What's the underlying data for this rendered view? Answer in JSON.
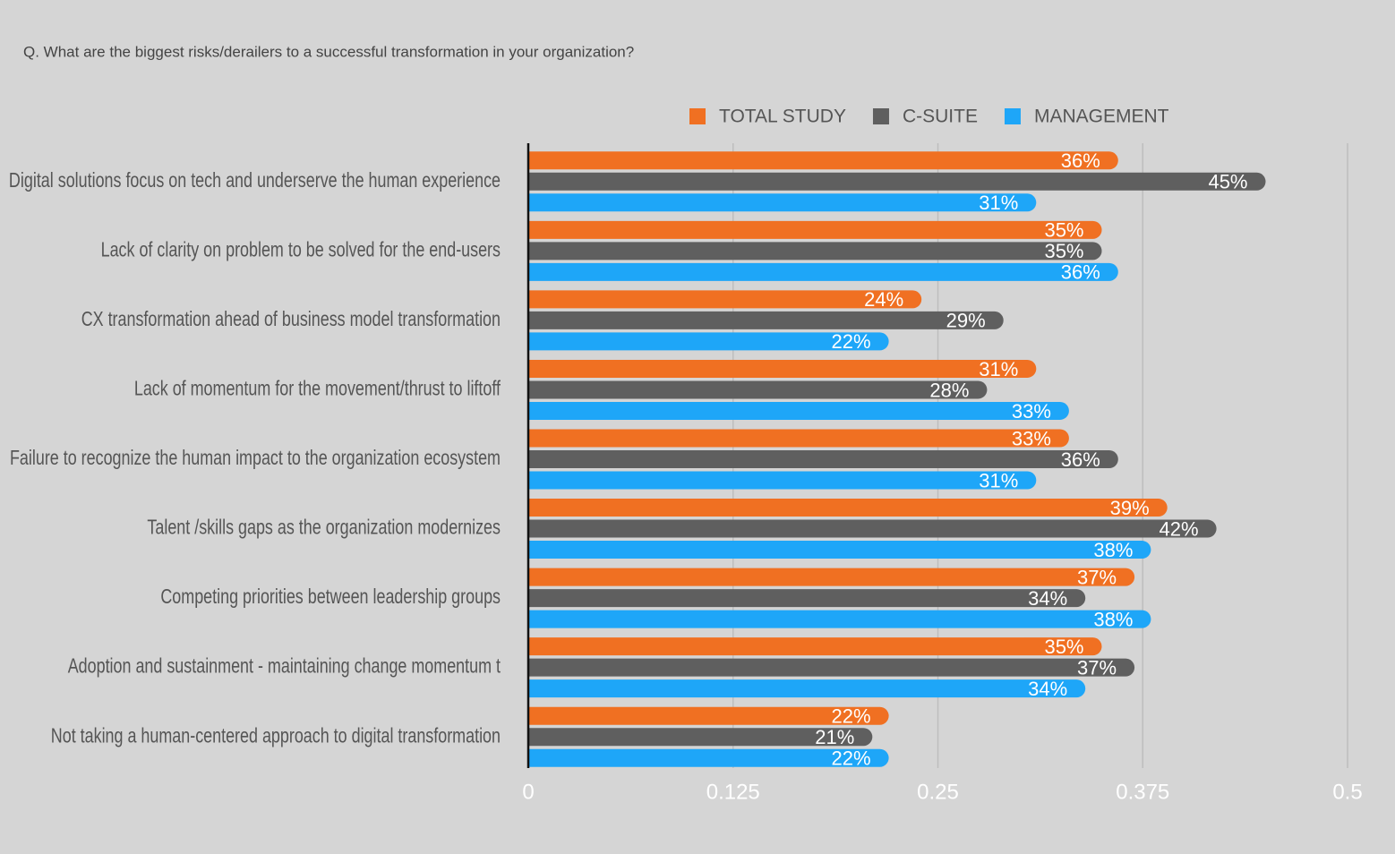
{
  "chart_data": {
    "type": "hbar",
    "title": "Q. What are the biggest risks/derailers to a successful transformation in your organization?",
    "categories": [
      "Digital solutions focus on tech and underserve the human experience",
      "Lack of clarity on problem to be solved for the end-users",
      "CX transformation ahead of business model transformation",
      "Lack of momentum for the movement/thrust to liftoff",
      "Failure to recognize the human impact to the organization ecosystem",
      "Talent /skills gaps as the organization modernizes",
      "Competing priorities between leadership groups",
      "Adoption and sustainment - maintaining change momentum t",
      "Not taking a human-centered approach to digital transformation"
    ],
    "series": [
      {
        "name": "TOTAL STUDY",
        "color": "#f07022",
        "values": [
          0.36,
          0.35,
          0.24,
          0.31,
          0.33,
          0.39,
          0.37,
          0.35,
          0.22
        ],
        "value_labels": [
          "36%",
          "35%",
          "24%",
          "31%",
          "33%",
          "39%",
          "37%",
          "35%",
          "22%"
        ]
      },
      {
        "name": "C-SUITE",
        "color": "#5f5f5f",
        "values": [
          0.45,
          0.35,
          0.29,
          0.28,
          0.36,
          0.42,
          0.34,
          0.37,
          0.21
        ],
        "value_labels": [
          "45%",
          "35%",
          "29%",
          "28%",
          "36%",
          "42%",
          "34%",
          "37%",
          "21%"
        ]
      },
      {
        "name": "MANAGEMENT",
        "color": "#1ea6f8",
        "values": [
          0.31,
          0.36,
          0.22,
          0.33,
          0.31,
          0.38,
          0.38,
          0.34,
          0.22
        ],
        "value_labels": [
          "31%",
          "36%",
          "22%",
          "33%",
          "31%",
          "38%",
          "38%",
          "34%",
          "22%"
        ]
      }
    ],
    "xlim": [
      0,
      0.5
    ],
    "xticks": [
      0,
      0.125,
      0.25,
      0.375,
      0.5
    ],
    "grid": true,
    "legend": "top"
  }
}
